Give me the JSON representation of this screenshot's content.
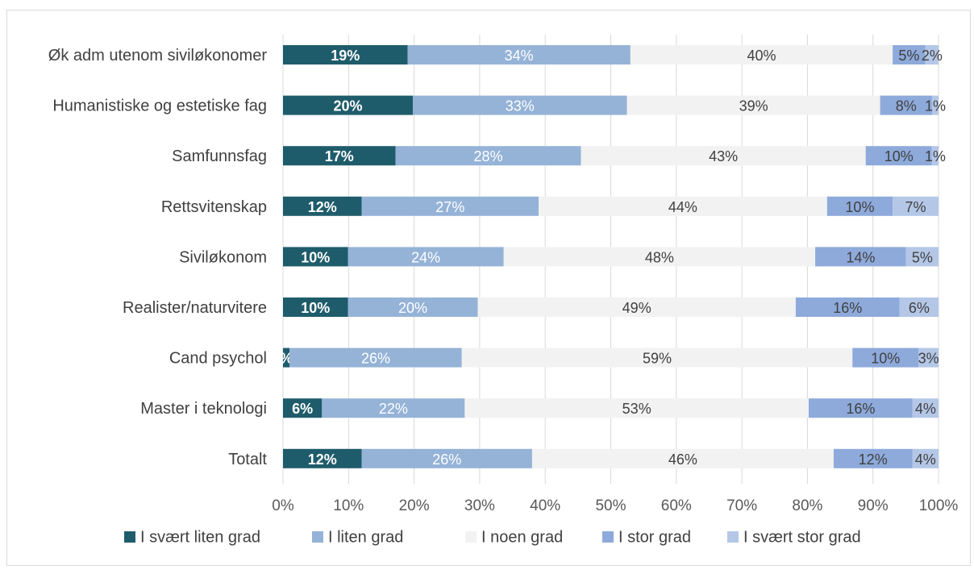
{
  "chart_data": {
    "type": "bar",
    "orientation": "horizontal",
    "stacked": "percent",
    "title": "",
    "xlabel": "",
    "ylabel": "",
    "xlim": [
      0,
      100
    ],
    "x_ticks": [
      "0%",
      "10%",
      "20%",
      "30%",
      "40%",
      "50%",
      "60%",
      "70%",
      "80%",
      "90%",
      "100%"
    ],
    "grid": "vertical",
    "legend_position": "bottom",
    "categories": [
      "Øk adm utenom siviløkonomer",
      "Humanistiske og estetiske fag",
      "Samfunnsfag",
      "Rettsvitenskap",
      "Siviløkonom",
      "Realister/naturvitere",
      "Cand psychol",
      "Master i teknologi",
      "Totalt"
    ],
    "series": [
      {
        "name": "I svært liten grad",
        "color": "#1f5c6b",
        "label_color": "#ffffff",
        "values": [
          19,
          20,
          17,
          12,
          10,
          10,
          1,
          6,
          12
        ],
        "labels": [
          "19%",
          "20%",
          "17%",
          "12%",
          "10%",
          "10%",
          "%",
          "6%",
          "12%"
        ]
      },
      {
        "name": "I liten grad",
        "color": "#95b3d7",
        "label_color": "#ffffff",
        "values": [
          34,
          33,
          28,
          27,
          24,
          20,
          26,
          22,
          26
        ],
        "labels": [
          "34%",
          "33%",
          "28%",
          "27%",
          "24%",
          "20%",
          "26%",
          "22%",
          "26%"
        ]
      },
      {
        "name": "I noen grad",
        "color": "#f2f2f2",
        "label_color": "#404040",
        "values": [
          40,
          39,
          43,
          44,
          48,
          49,
          59,
          53,
          46
        ],
        "labels": [
          "40%",
          "39%",
          "43%",
          "44%",
          "48%",
          "49%",
          "59%",
          "53%",
          "46%"
        ]
      },
      {
        "name": "I stor grad",
        "color": "#8eaadb",
        "label_color": "#404040",
        "values": [
          5,
          8,
          10,
          10,
          14,
          16,
          10,
          16,
          12
        ],
        "labels": [
          "5%",
          "8%",
          "10%",
          "10%",
          "14%",
          "16%",
          "10%",
          "16%",
          "12%"
        ]
      },
      {
        "name": "I svært stor grad",
        "color": "#b4c7e7",
        "label_color": "#404040",
        "values": [
          2,
          1,
          1,
          7,
          5,
          6,
          3,
          4,
          4
        ],
        "labels": [
          "2%",
          "1%",
          "1%",
          "7%",
          "5%",
          "6%",
          "3%",
          "4%",
          "4%"
        ]
      }
    ]
  }
}
